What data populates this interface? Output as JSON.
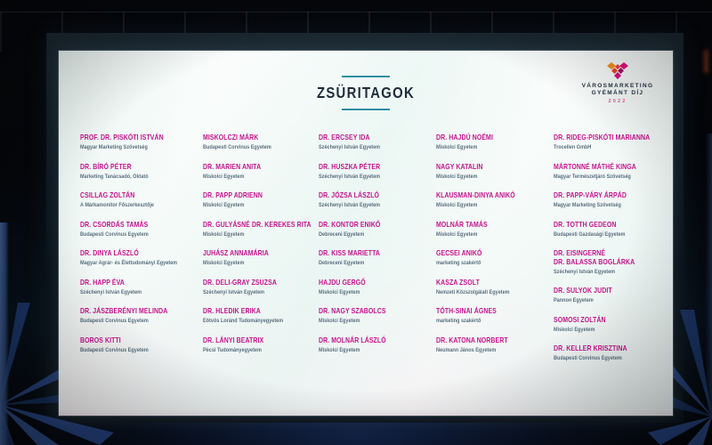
{
  "slide": {
    "title": "ZSÜRITAGOK",
    "logo": {
      "line1": "VÁROSMARKETING",
      "line2": "GYÉMÁNT DÍJ",
      "year": "2022"
    },
    "columns": [
      {
        "members": [
          {
            "name": "PROF. DR. PISKÓTI ISTVÁN",
            "affiliation": "Magyar Marketing Szövetség"
          },
          {
            "name": "DR. BÍRÓ PÉTER",
            "affiliation": "Marketing Tanácsadó, Oktató"
          },
          {
            "name": "CSILLAG ZOLTÁN",
            "affiliation": "A Márkamonitor Főszerkesztője"
          },
          {
            "name": "DR. CSORDÁS TAMÁS",
            "affiliation": "Budapesti Corvinus Egyetem"
          },
          {
            "name": "DR. DINYA LÁSZLÓ",
            "affiliation": "Magyar Agrár- és Élettudományi Egyetem"
          },
          {
            "name": "DR. HAPP ÉVA",
            "affiliation": "Széchenyi István Egyetem"
          },
          {
            "name": "DR. JÁSZBERÉNYI MELINDA",
            "affiliation": "Budapesti Corvinus Egyetem"
          },
          {
            "name": "BOROS KITTI",
            "affiliation": "Budapesti Corvinus Egyetem"
          }
        ]
      },
      {
        "members": [
          {
            "name": "MISKOLCZI MÁRK",
            "affiliation": "Budapesti Corvinus Egyetem"
          },
          {
            "name": "DR. MARIEN ANITA",
            "affiliation": "Miskolci Egyetem"
          },
          {
            "name": "DR. PAPP ADRIENN",
            "affiliation": "Miskolci Egyetem"
          },
          {
            "name": "DR. GULYÁSNÉ DR. KEREKES RITA",
            "affiliation": "Miskolci Egyetem"
          },
          {
            "name": "JUHÁSZ ANNAMÁRIA",
            "affiliation": "Miskolci Egyetem"
          },
          {
            "name": "DR. DELI-GRAY ZSUZSA",
            "affiliation": "Széchenyi István Egyetem"
          },
          {
            "name": "DR. HLEDIK ERIKA",
            "affiliation": "Eötvös Loránd Tudományegyetem"
          },
          {
            "name": "DR. LÁNYI BEATRIX",
            "affiliation": "Pécsi Tudományegyetem"
          }
        ]
      },
      {
        "members": [
          {
            "name": "DR. ERCSEY IDA",
            "affiliation": "Széchenyi István Egyetem"
          },
          {
            "name": "DR. HUSZKA PÉTER",
            "affiliation": "Széchenyi István Egyetem"
          },
          {
            "name": "DR. JÓZSA LÁSZLÓ",
            "affiliation": "Széchenyi István Egyetem"
          },
          {
            "name": "DR. KONTOR ENIKŐ",
            "affiliation": "Debreceni Egyetem"
          },
          {
            "name": "DR. KISS MARIETTA",
            "affiliation": "Debreceni Egyetem"
          },
          {
            "name": "HAJDU GERGŐ",
            "affiliation": "Miskolci Egyetem"
          },
          {
            "name": "DR. NAGY SZABOLCS",
            "affiliation": "Miskolci Egyetem"
          },
          {
            "name": "DR. MOLNÁR LÁSZLÓ",
            "affiliation": "Miskolci Egyetem"
          }
        ]
      },
      {
        "members": [
          {
            "name": "DR. HAJDÚ NOÉMI",
            "affiliation": "Miskolci Egyetem"
          },
          {
            "name": "NAGY KATALIN",
            "affiliation": "Miskolci Egyetem"
          },
          {
            "name": "KLAUSMAN-DINYA ANIKÓ",
            "affiliation": "Miskolci Egyetem"
          },
          {
            "name": "MOLNÁR TAMÁS",
            "affiliation": "Miskolci Egyetem"
          },
          {
            "name": "GECSEI ANIKÓ",
            "affiliation": "marketing szakértő"
          },
          {
            "name": "KASZA ZSOLT",
            "affiliation": "Nemzeti Közszolgálati Egyetem"
          },
          {
            "name": "TÓTH-SINAI ÁGNES",
            "affiliation": "marketing szakértő"
          },
          {
            "name": "DR. KATONA NORBERT",
            "affiliation": "Neumann János Egyetem"
          }
        ]
      },
      {
        "members": [
          {
            "name": "DR. RIDEG-PISKÓTI MARIANNA",
            "affiliation": "Trocellen GmbH"
          },
          {
            "name": "MÁRTONNÉ MÁTHÉ KINGA",
            "affiliation": "Magyar Természetjáró Szövetség"
          },
          {
            "name": "DR. PAPP-VÁRY ÁRPÁD",
            "affiliation": "Magyar Marketing Szövetség"
          },
          {
            "name": "DR. TOTTH GEDEON",
            "affiliation": "Budapesti Gazdasági Egyetem"
          },
          {
            "name": "DR. EISINGERNÉ\nDR. BALASSA BOGLÁRKA",
            "affiliation": "Széchenyi István Egyetem"
          },
          {
            "name": "DR. SULYOK JUDIT",
            "affiliation": "Pannon Egyetem"
          },
          {
            "name": "SOMOSI ZOLTÁN",
            "affiliation": "Miskolci Egyetem"
          },
          {
            "name": "DR. KELLER KRISZTINA",
            "affiliation": "Budapesti Corvinus Egyetem"
          }
        ]
      }
    ]
  },
  "colors": {
    "member_name": "#c6138b",
    "member_affiliation": "#5a6e7e",
    "title_text": "#1f2d3a",
    "accent_rule": "#2f8fa0",
    "logo_year": "#e8559a",
    "stage_blue": "#2a4a8c"
  }
}
